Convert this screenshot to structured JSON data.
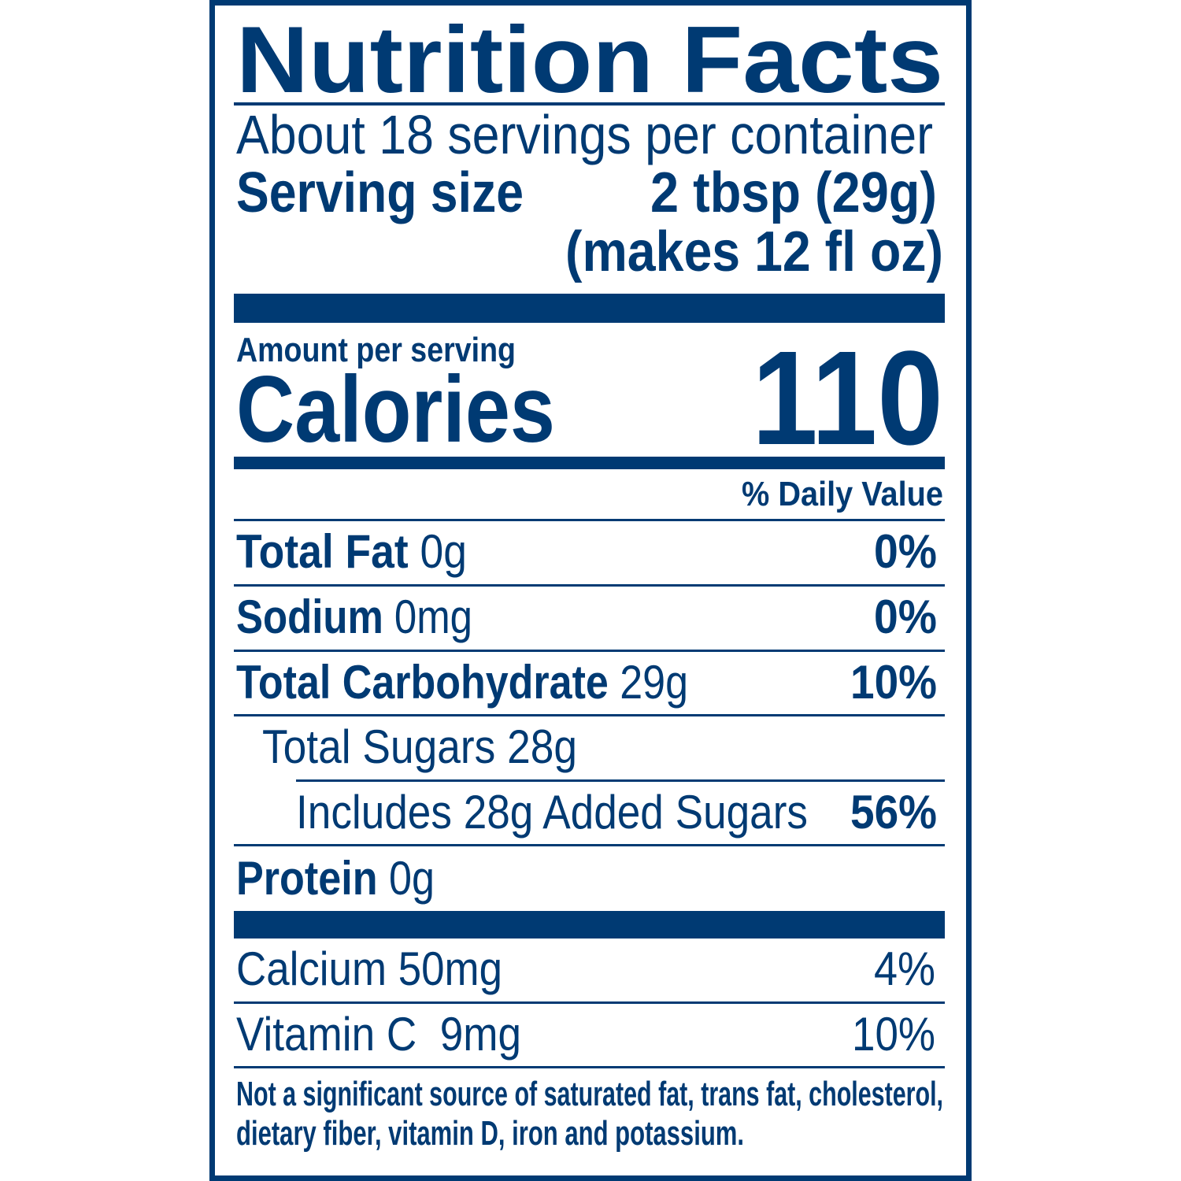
{
  "label": {
    "title": "Nutrition Facts",
    "servings_per_container": "About 18 servings per container",
    "serving_size_label": "Serving size",
    "serving_size_value": "2 tbsp (29g)",
    "serving_size_note": "(makes 12 fl oz)",
    "amount_per_serving": "Amount per serving",
    "calories_label": "Calories",
    "calories_value": "110",
    "daily_value_header": "% Daily Value",
    "nutrients": [
      {
        "name": "Total Fat",
        "amount": "0g",
        "dv": "0%"
      },
      {
        "name": "Sodium",
        "amount": "0mg",
        "dv": "0%"
      },
      {
        "name": "Total Carbohydrate",
        "amount": "29g",
        "dv": "10%"
      },
      {
        "name": "Total Sugars 28g"
      },
      {
        "name": "Includes 28g Added Sugars",
        "dv": "56%"
      },
      {
        "name": "Protein",
        "amount": "0g"
      }
    ],
    "vitamins": [
      {
        "name": "Calcium 50mg",
        "dv": "4%"
      },
      {
        "name": "Vitamin C  9mg",
        "dv": "10%"
      }
    ],
    "footnote_line1": "Not a significant source of saturated fat, trans fat, cholesterol,",
    "footnote_line2": "dietary fiber, vitamin D, iron and potassium.",
    "colors": {
      "ink": "#003a73",
      "background": "#ffffff"
    }
  }
}
